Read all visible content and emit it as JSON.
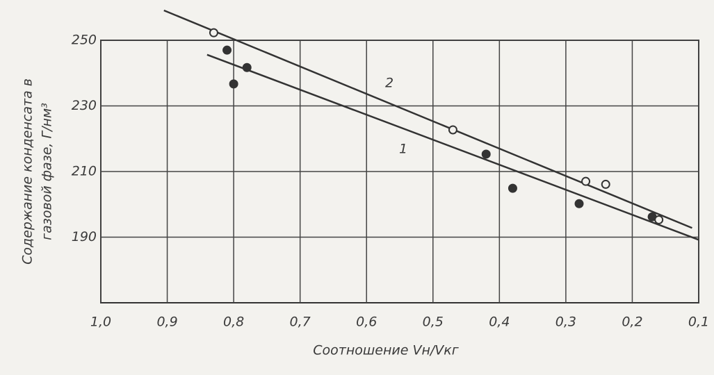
{
  "chart_data": {
    "type": "scatter",
    "xlabel": "Соотношение Vн/Vкг",
    "ylabel": [
      "Содержание конденсата в",
      "газовой фазе, Г/нм³"
    ],
    "xlim": [
      1.0,
      0.1
    ],
    "ylim": [
      170,
      250
    ],
    "xticks": [
      {
        "value": 1.0,
        "label": "1,0"
      },
      {
        "value": 0.9,
        "label": "0,9"
      },
      {
        "value": 0.8,
        "label": "0,8"
      },
      {
        "value": 0.7,
        "label": "0,7"
      },
      {
        "value": 0.6,
        "label": "0,6"
      },
      {
        "value": 0.5,
        "label": "0,5"
      },
      {
        "value": 0.4,
        "label": "0,4"
      },
      {
        "value": 0.3,
        "label": "0,3"
      },
      {
        "value": 0.2,
        "label": "0,2"
      },
      {
        "value": 0.1,
        "label": "0,1"
      }
    ],
    "yticks": [
      190,
      210,
      230,
      250
    ],
    "grid": true,
    "series": [
      {
        "name": "1",
        "marker": "filled",
        "color": "#333333",
        "x": [
          0.81,
          0.8,
          0.78,
          0.42,
          0.38,
          0.28,
          0.17
        ],
        "values": [
          247,
          236.7,
          241.7,
          215.3,
          204.9,
          200.2,
          196.2
        ],
        "fit_x": [
          0.84,
          0.1
        ],
        "fit_values": [
          245.6,
          189.2
        ]
      },
      {
        "name": "2",
        "marker": "open",
        "color": "#333333",
        "x": [
          0.83,
          0.47,
          0.27,
          0.24,
          0.16
        ],
        "values": [
          252.3,
          222.7,
          207,
          206.1,
          195.3
        ],
        "fit_x": [
          0.905,
          0.11
        ],
        "fit_values": [
          259.1,
          192.8
        ]
      }
    ]
  }
}
